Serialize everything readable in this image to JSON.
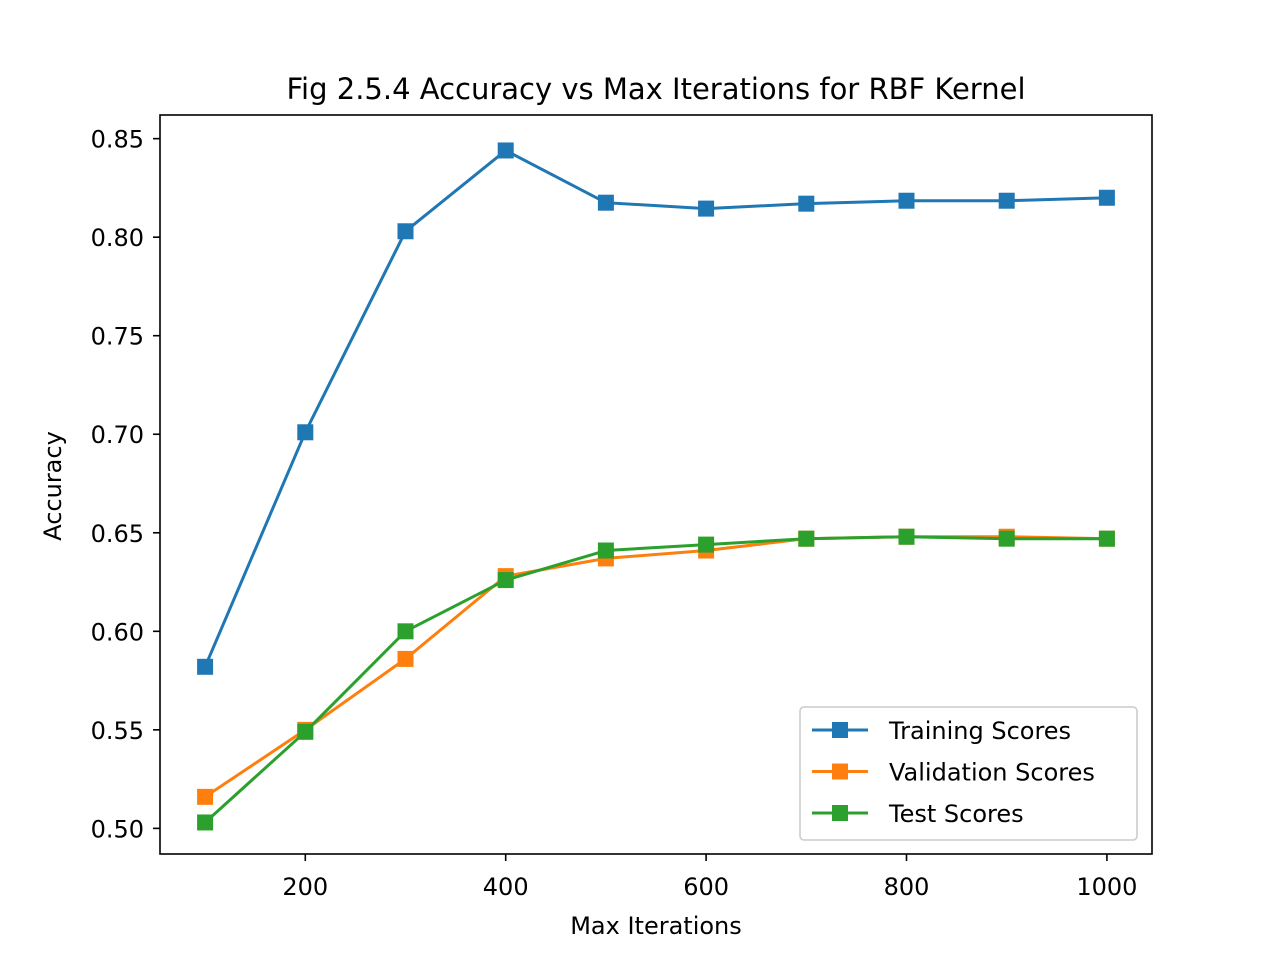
{
  "chart_data": {
    "type": "line",
    "title": "Fig 2.5.4 Accuracy vs Max Iterations for RBF Kernel",
    "xlabel": "Max Iterations",
    "ylabel": "Accuracy",
    "xlim": [
      55,
      1045
    ],
    "ylim": [
      0.487,
      0.862
    ],
    "x": [
      100,
      200,
      300,
      400,
      500,
      600,
      700,
      800,
      900,
      1000
    ],
    "xticks": [
      200,
      400,
      600,
      800,
      1000
    ],
    "yticks": [
      0.5,
      0.55,
      0.6,
      0.65,
      0.7,
      0.75,
      0.8,
      0.85
    ],
    "xtick_labels": [
      "200",
      "400",
      "600",
      "800",
      "1000"
    ],
    "ytick_labels": [
      "0.50",
      "0.55",
      "0.60",
      "0.65",
      "0.70",
      "0.75",
      "0.80",
      "0.85"
    ],
    "grid": false,
    "legend_position": "lower-right",
    "marker": "square",
    "series": [
      {
        "name": "Training Scores",
        "color": "#1f77b4",
        "values": [
          0.582,
          0.701,
          0.803,
          0.844,
          0.8175,
          0.8145,
          0.817,
          0.8185,
          0.8185,
          0.82
        ]
      },
      {
        "name": "Validation Scores",
        "color": "#ff7f0e",
        "values": [
          0.516,
          0.55,
          0.586,
          0.628,
          0.637,
          0.641,
          0.647,
          0.648,
          0.648,
          0.647
        ]
      },
      {
        "name": "Test Scores",
        "color": "#2ca02c",
        "values": [
          0.503,
          0.549,
          0.6,
          0.626,
          0.641,
          0.644,
          0.647,
          0.648,
          0.647,
          0.647
        ]
      }
    ]
  }
}
